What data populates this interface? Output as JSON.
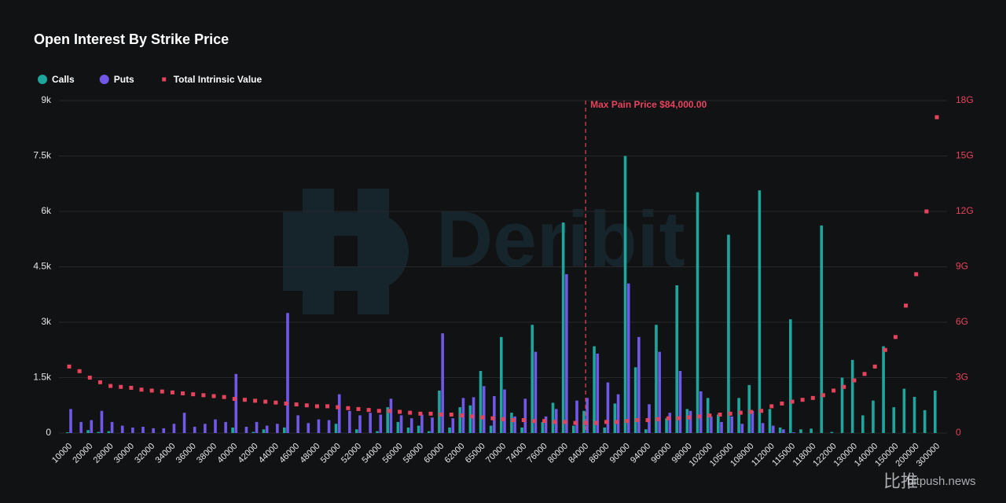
{
  "chart_data": {
    "type": "bar",
    "title": "Open Interest By Strike Price",
    "categories": [
      "10000",
      null,
      "20000",
      null,
      "28000",
      null,
      "30000",
      null,
      "32000",
      null,
      "34000",
      null,
      "36000",
      null,
      "38000",
      null,
      "40000",
      null,
      "42000",
      null,
      "44000",
      null,
      "46000",
      null,
      "48000",
      null,
      "50000",
      null,
      "52000",
      null,
      "54000",
      null,
      "56000",
      null,
      "58000",
      null,
      "60000",
      null,
      "62000",
      null,
      "65000",
      null,
      "70000",
      null,
      "74000",
      null,
      "76000",
      null,
      "80000",
      null,
      "84000",
      null,
      "86000",
      null,
      "90000",
      null,
      "94000",
      null,
      "96000",
      null,
      "98000",
      null,
      "102000",
      null,
      "105000",
      null,
      "108000",
      null,
      "112000",
      null,
      "115000",
      null,
      "118000",
      null,
      "122000",
      null,
      "130000",
      null,
      "140000",
      null,
      "150000",
      null,
      "200000",
      null,
      "300000"
    ],
    "series": [
      {
        "name": "Calls",
        "color": "#1fa69c",
        "values": [
          20,
          0,
          80,
          30,
          50,
          0,
          0,
          0,
          0,
          0,
          0,
          0,
          0,
          0,
          0,
          0,
          150,
          0,
          30,
          100,
          0,
          150,
          0,
          0,
          0,
          0,
          250,
          0,
          100,
          0,
          50,
          700,
          300,
          150,
          200,
          50,
          1150,
          150,
          700,
          750,
          1680,
          200,
          2600,
          550,
          150,
          2930,
          300,
          820,
          5700,
          200,
          600,
          2350,
          150,
          800,
          7500,
          1780,
          100,
          2930,
          400,
          4000,
          650,
          6520,
          950,
          500,
          5370,
          950,
          1300,
          6570,
          650,
          150,
          3080,
          100,
          120,
          5620,
          30,
          1500,
          1980,
          480,
          880,
          2350,
          700,
          1200,
          980,
          620,
          1150
        ]
      },
      {
        "name": "Puts",
        "color": "#7257e8",
        "values": [
          650,
          300,
          350,
          600,
          300,
          200,
          150,
          170,
          130,
          130,
          250,
          550,
          170,
          250,
          370,
          300,
          1600,
          170,
          300,
          200,
          250,
          3250,
          480,
          270,
          370,
          350,
          1050,
          600,
          480,
          550,
          500,
          930,
          480,
          400,
          500,
          420,
          2700,
          400,
          950,
          970,
          1270,
          1000,
          1180,
          450,
          930,
          2200,
          450,
          650,
          4300,
          880,
          950,
          2150,
          1370,
          1050,
          4050,
          2600,
          780,
          2200,
          550,
          1680,
          600,
          1130,
          450,
          300,
          450,
          250,
          600,
          270,
          200,
          100,
          20,
          0,
          0,
          0,
          0,
          0,
          0,
          0,
          0,
          0,
          0,
          0,
          0,
          0,
          0
        ]
      },
      {
        "name": "Total Intrinsic Value",
        "color": "#e8435c",
        "axis": "y2",
        "values": [
          3.6,
          3.35,
          3.0,
          2.75,
          2.55,
          2.5,
          2.45,
          2.35,
          2.3,
          2.25,
          2.2,
          2.15,
          2.1,
          2.05,
          2.0,
          1.95,
          1.85,
          1.8,
          1.75,
          1.7,
          1.65,
          1.6,
          1.55,
          1.5,
          1.45,
          1.45,
          1.4,
          1.35,
          1.3,
          1.25,
          1.2,
          1.2,
          1.15,
          1.1,
          1.05,
          1.05,
          1.0,
          1.0,
          0.95,
          0.9,
          0.85,
          0.8,
          0.75,
          0.7,
          0.7,
          0.65,
          0.65,
          0.6,
          0.6,
          0.55,
          0.55,
          0.55,
          0.6,
          0.6,
          0.65,
          0.7,
          0.7,
          0.75,
          0.8,
          0.8,
          0.85,
          0.9,
          0.95,
          1.0,
          1.05,
          1.1,
          1.15,
          1.2,
          1.45,
          1.6,
          1.7,
          1.8,
          1.9,
          2.05,
          2.3,
          2.5,
          2.85,
          3.2,
          3.6,
          4.5,
          5.2,
          6.9,
          8.6,
          12.0,
          17.1
        ]
      }
    ],
    "ylim": [
      0,
      9000
    ],
    "yticks": [
      0,
      {
        "value": 1500,
        "label": "1.5k"
      },
      {
        "value": 3000,
        "label": "3k"
      },
      {
        "value": 4500,
        "label": "4.5k"
      },
      {
        "value": 6000,
        "label": "6k"
      },
      {
        "value": 7500,
        "label": "7.5k"
      },
      {
        "value": 9000,
        "label": "9k"
      }
    ],
    "y2lim": [
      0,
      18
    ],
    "y2ticks": [
      0,
      {
        "value": 3,
        "label": "3G"
      },
      {
        "value": 6,
        "label": "6G"
      },
      {
        "value": 9,
        "label": "9G"
      },
      {
        "value": 12,
        "label": "12G"
      },
      {
        "value": 15,
        "label": "15G"
      },
      {
        "value": 18,
        "label": "18G"
      }
    ],
    "grid": true,
    "max_pain": {
      "strike": 84000,
      "label": "Max Pain Price $84,000.00"
    },
    "watermarks": [
      "Deribit",
      "比推",
      "bitpush.news"
    ]
  }
}
